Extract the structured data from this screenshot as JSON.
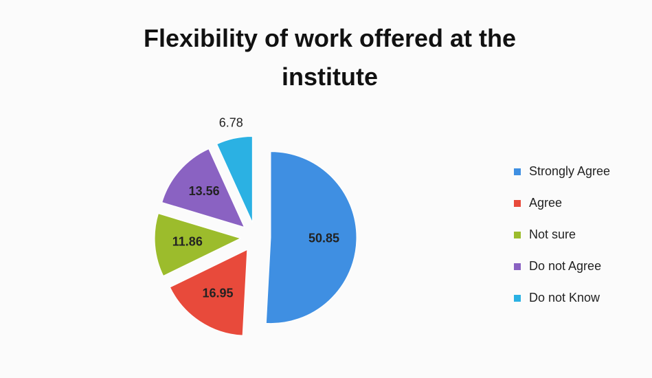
{
  "chart_data": {
    "type": "pie",
    "title": "Flexibility of work offered at the institute",
    "categories": [
      "Strongly Agree",
      "Agree",
      "Not sure",
      "Do not Agree",
      "Do not Know"
    ],
    "values": [
      50.85,
      16.95,
      11.86,
      13.56,
      6.78
    ],
    "colors": [
      "#3f8fe2",
      "#e84a3b",
      "#9cbc2c",
      "#8a62c2",
      "#2bb1e3"
    ],
    "legend": "right"
  }
}
